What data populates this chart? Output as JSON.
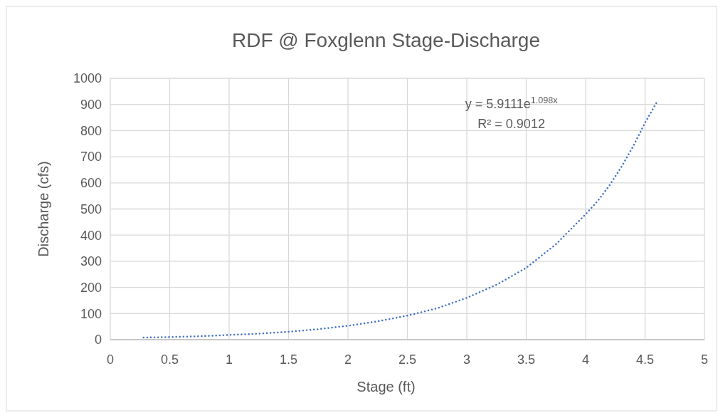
{
  "chart_data": {
    "type": "line",
    "title": "RDF @ Foxglenn Stage-Discharge",
    "xlabel": "Stage (ft)",
    "ylabel": "Discharge (cfs)",
    "annotations": [
      "y = 5.9111e$^{1.098x}$",
      "R² = 0.9012"
    ],
    "series": [
      {
        "color": "#4472c4",
        "x": [
          0.28,
          0.5,
          0.75,
          1,
          1.25,
          1.5,
          1.75,
          2,
          2.25,
          2.5,
          2.75,
          3,
          3.25,
          3.5,
          3.75,
          4,
          4.1,
          4.2,
          4.3,
          4.4,
          4.5,
          4.6
        ],
        "values": [
          8,
          10,
          13,
          18,
          23,
          30,
          40,
          53,
          70,
          92,
          120,
          160,
          210,
          275,
          365,
          480,
          530,
          590,
          660,
          740,
          830,
          910
        ]
      }
    ],
    "xlim": [
      0,
      5
    ],
    "xticks": [
      0,
      0.5,
      1,
      1.5,
      2,
      2.5,
      3,
      3.5,
      4,
      4.5,
      5
    ],
    "ylim": [
      0,
      1000
    ],
    "yticks": [
      0,
      100,
      200,
      300,
      400,
      500,
      600,
      700,
      800,
      900,
      1000
    ],
    "grid": true,
    "marker": "none",
    "line_style": "dotted"
  }
}
